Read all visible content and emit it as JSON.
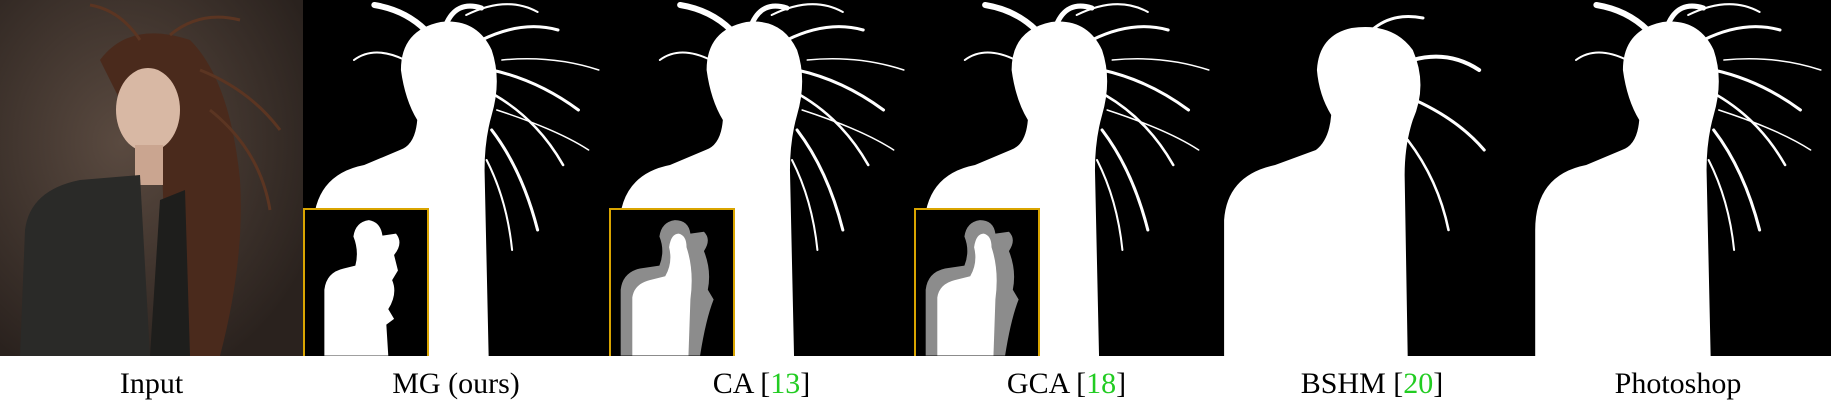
{
  "panels": [
    {
      "id": "input",
      "caption": "Input",
      "ref": ""
    },
    {
      "id": "mg",
      "caption": "MG (ours)",
      "ref": ""
    },
    {
      "id": "ca",
      "caption": "CA [",
      "ref": "13",
      "close": "]"
    },
    {
      "id": "gca",
      "caption": "GCA [",
      "ref": "18",
      "close": "]"
    },
    {
      "id": "bshm",
      "caption": "BSHM [",
      "ref": "20",
      "close": "]"
    },
    {
      "id": "photoshop",
      "caption": "Photoshop",
      "ref": ""
    }
  ],
  "colors": {
    "inset_border": "#d9a400",
    "ref_link": "#22cc22",
    "matte_fg": "#ffffff",
    "matte_bg": "#000000",
    "trimap_unknown": "#8c8c8c"
  },
  "icons": {
    "inset": "trimap-inset"
  }
}
